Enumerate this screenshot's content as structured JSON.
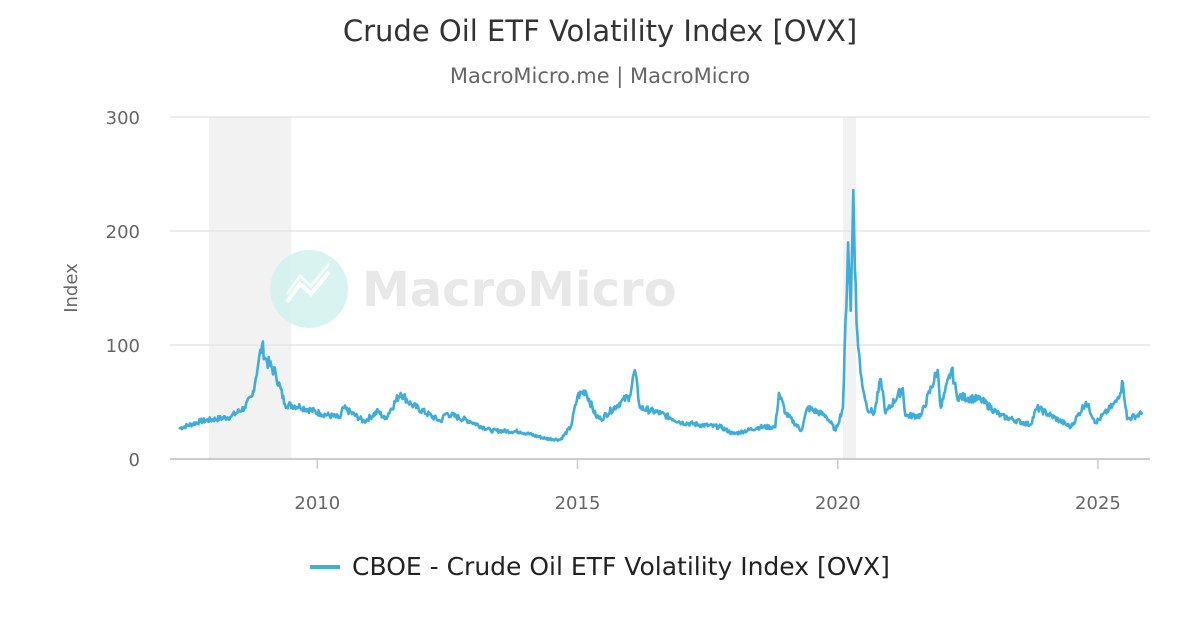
{
  "chart_data": {
    "type": "line",
    "title": "Crude Oil ETF Volatility Index [OVX]",
    "subtitle": "MacroMicro.me | MacroMicro",
    "ylabel": "Index",
    "xlabel": "",
    "ylim": [
      0,
      300
    ],
    "xlim": [
      2007.17,
      2026.0
    ],
    "yticks": [
      0,
      100,
      200,
      300
    ],
    "xticks": [
      2010,
      2015,
      2020,
      2025
    ],
    "grid": true,
    "legend_position": "bottom",
    "watermark": "MacroMicro",
    "shaded_periods": [
      [
        2007.92,
        2009.5
      ],
      [
        2020.1,
        2020.35
      ]
    ],
    "series": [
      {
        "name": "CBOE - Crude Oil ETF Volatility Index [OVX]",
        "color": "#3daed9",
        "x": [
          2007.35,
          2007.75,
          2008.33,
          2008.6,
          2008.75,
          2008.87,
          2008.94,
          2009.0,
          2009.2,
          2009.38,
          2009.67,
          2010.06,
          2010.44,
          2010.5,
          2010.9,
          2011.17,
          2011.3,
          2011.6,
          2011.8,
          2012.37,
          2012.47,
          2012.94,
          2013.33,
          2013.9,
          2014.38,
          2014.67,
          2014.87,
          2015.0,
          2015.15,
          2015.35,
          2015.45,
          2015.83,
          2016.0,
          2016.1,
          2016.2,
          2016.6,
          2017.0,
          2017.37,
          2017.75,
          2018.0,
          2018.5,
          2018.8,
          2018.87,
          2019.0,
          2019.3,
          2019.42,
          2019.77,
          2019.96,
          2020.1,
          2020.2,
          2020.25,
          2020.3,
          2020.36,
          2020.44,
          2020.56,
          2020.7,
          2020.83,
          2020.92,
          2021.25,
          2021.3,
          2021.6,
          2021.92,
          2021.98,
          2022.19,
          2022.29,
          2022.75,
          2023.13,
          2023.7,
          2023.83,
          2024.48,
          2024.77,
          2024.96,
          2025.35,
          2025.48,
          2025.56,
          2025.85
        ],
        "values": [
          27,
          33,
          37,
          45,
          55,
          85,
          100,
          88,
          75,
          48,
          46,
          40,
          36,
          45,
          33,
          42,
          35,
          58,
          48,
          33,
          40,
          33,
          25,
          24,
          18,
          17,
          28,
          55,
          60,
          38,
          35,
          50,
          55,
          78,
          45,
          40,
          32,
          30,
          28,
          22,
          28,
          28,
          58,
          40,
          25,
          45,
          38,
          25,
          45,
          190,
          130,
          236,
          120,
          75,
          45,
          40,
          70,
          40,
          62,
          38,
          38,
          78,
          45,
          79,
          55,
          52,
          38,
          30,
          45,
          28,
          50,
          32,
          50,
          67,
          35,
          40
        ]
      }
    ]
  }
}
